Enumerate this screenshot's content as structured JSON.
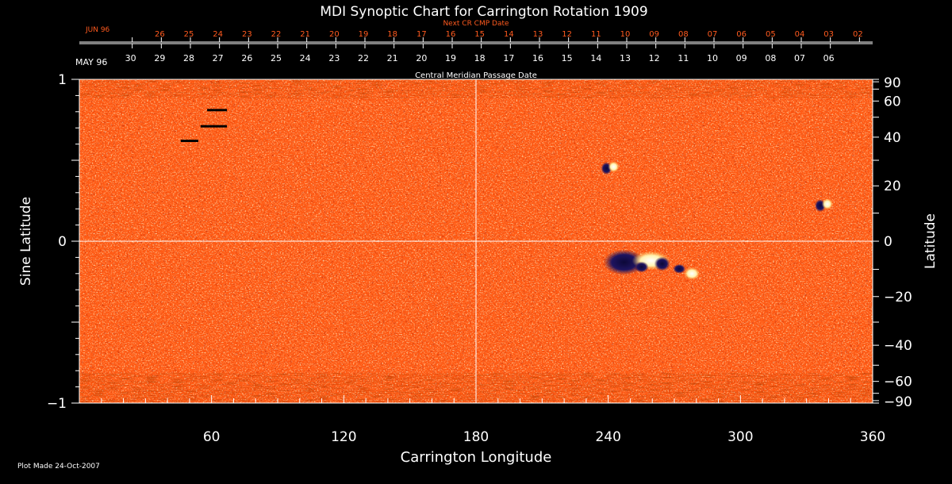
{
  "chart_data": {
    "type": "heatmap",
    "title": "MDI Synoptic Chart for Carrington Rotation 1909",
    "xlabel": "Carrington Longitude",
    "ylabel_left": "Sine Latitude",
    "ylabel_right": "Latitude",
    "xlim": [
      0,
      360
    ],
    "ylim": [
      -1,
      1
    ],
    "x_ticks": [
      60,
      120,
      180,
      240,
      300,
      360
    ],
    "y_ticks_left": [
      {
        "value": 1,
        "label": "1"
      },
      {
        "value": 0,
        "label": "0"
      },
      {
        "value": -1,
        "label": "−1"
      }
    ],
    "y_ticks_right": [
      90,
      60,
      40,
      20,
      0,
      -20,
      -40,
      -60,
      -90
    ],
    "y_ticks_right_labels": [
      "90",
      "60",
      "40",
      "20",
      "0",
      "−20",
      "−40",
      "−60",
      "−90"
    ],
    "guide_lines": {
      "longitude": 180,
      "sine_latitude": 0
    },
    "next_cr_axis": {
      "title": "Next CR CMP Date",
      "month_label": "JUN 96",
      "ticks": [
        {
          "lon": 24,
          "label": ""
        },
        {
          "lon": 37.2,
          "label": "26"
        },
        {
          "lon": 50.4,
          "label": "25"
        },
        {
          "lon": 63.6,
          "label": "24"
        },
        {
          "lon": 76.8,
          "label": "23"
        },
        {
          "lon": 90,
          "label": "22"
        },
        {
          "lon": 103.2,
          "label": "21"
        },
        {
          "lon": 116.4,
          "label": "20"
        },
        {
          "lon": 129.6,
          "label": "19"
        },
        {
          "lon": 142.8,
          "label": "18"
        },
        {
          "lon": 156,
          "label": "17"
        },
        {
          "lon": 169.2,
          "label": "16"
        },
        {
          "lon": 182.4,
          "label": "15"
        },
        {
          "lon": 195.6,
          "label": "14"
        },
        {
          "lon": 208.8,
          "label": "13"
        },
        {
          "lon": 222,
          "label": "12"
        },
        {
          "lon": 235.2,
          "label": "11"
        },
        {
          "lon": 248.4,
          "label": "10"
        },
        {
          "lon": 261.6,
          "label": "09"
        },
        {
          "lon": 274.8,
          "label": "08"
        },
        {
          "lon": 288,
          "label": "07"
        },
        {
          "lon": 301.2,
          "label": "06"
        },
        {
          "lon": 314.4,
          "label": "05"
        },
        {
          "lon": 327.6,
          "label": "04"
        },
        {
          "lon": 340.8,
          "label": "03"
        },
        {
          "lon": 354,
          "label": "02"
        }
      ]
    },
    "cmp_axis": {
      "title": "Central Meridian Passage Date",
      "month_label": "MAY 96",
      "ticks": [
        {
          "lon": 24,
          "label": "30"
        },
        {
          "lon": 37.2,
          "label": "29"
        },
        {
          "lon": 50.4,
          "label": "28"
        },
        {
          "lon": 63.6,
          "label": "27"
        },
        {
          "lon": 76.8,
          "label": "26"
        },
        {
          "lon": 90,
          "label": "25"
        },
        {
          "lon": 103.2,
          "label": "24"
        },
        {
          "lon": 116.4,
          "label": "23"
        },
        {
          "lon": 129.6,
          "label": "22"
        },
        {
          "lon": 142.8,
          "label": "21"
        },
        {
          "lon": 156,
          "label": "20"
        },
        {
          "lon": 169.2,
          "label": "19"
        },
        {
          "lon": 182.4,
          "label": "18"
        },
        {
          "lon": 195.6,
          "label": "17"
        },
        {
          "lon": 208.8,
          "label": "16"
        },
        {
          "lon": 222,
          "label": "15"
        },
        {
          "lon": 235.2,
          "label": "14"
        },
        {
          "lon": 248.4,
          "label": "13"
        },
        {
          "lon": 261.6,
          "label": "12"
        },
        {
          "lon": 274.8,
          "label": "11"
        },
        {
          "lon": 288,
          "label": "10"
        },
        {
          "lon": 301.2,
          "label": "09"
        },
        {
          "lon": 314.4,
          "label": "08"
        },
        {
          "lon": 327.6,
          "label": "07"
        },
        {
          "lon": 340.8,
          "label": "06"
        }
      ]
    },
    "features": [
      {
        "kind": "active-region",
        "lon": 258,
        "sinlat": -0.13,
        "polarity": "mixed"
      },
      {
        "kind": "active-region",
        "lon": 278,
        "sinlat": -0.2,
        "polarity": "positive"
      },
      {
        "kind": "small-region",
        "lon": 338,
        "sinlat": 0.22,
        "polarity": "mixed"
      },
      {
        "kind": "small-region",
        "lon": 241,
        "sinlat": 0.45,
        "polarity": "mixed"
      },
      {
        "kind": "data-gap",
        "lon_start": 58,
        "lon_end": 67,
        "sinlat": 0.81
      },
      {
        "kind": "data-gap",
        "lon_start": 55,
        "lon_end": 67,
        "sinlat": 0.71
      },
      {
        "kind": "data-gap",
        "lon_start": 46,
        "lon_end": 54,
        "sinlat": 0.62
      }
    ],
    "colors": {
      "background": "#000000",
      "field_base": "#ff5a14",
      "positive": "#fff8d0",
      "negative": "#1a1050",
      "guide": "#ffffff",
      "secondary_axis": "#ff5a1e"
    }
  },
  "footer": {
    "plot_made": "Plot Made 24-Oct-2007"
  }
}
